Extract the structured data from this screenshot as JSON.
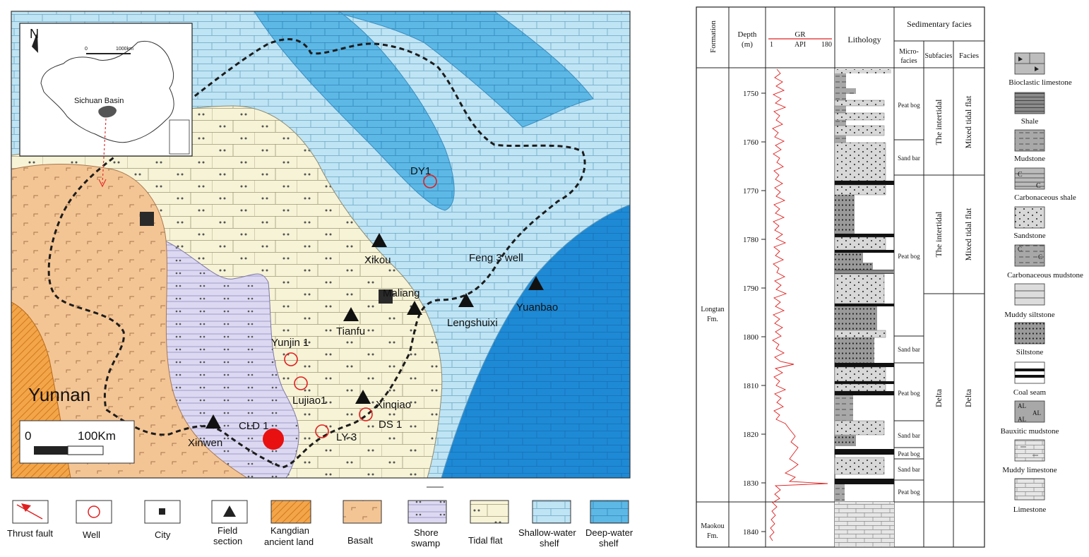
{
  "map": {
    "north": "N",
    "inset_scale": "0    1000km",
    "inset_scale_zero": "0",
    "inset_scale_value": "1000km",
    "inset_basin_label": "Sichuan Basin",
    "province_label": "Yunnan",
    "scale_zero": "0",
    "scale_value": "100Km",
    "wells": [
      {
        "name": "DY1"
      },
      {
        "name": "Yunjin 1"
      },
      {
        "name": "Lujiao1"
      },
      {
        "name": "CLD 1"
      },
      {
        "name": "LY-3"
      },
      {
        "name": "DS 1"
      }
    ],
    "sections": [
      {
        "name": "Xikou"
      },
      {
        "name": "Tianfu"
      },
      {
        "name": "Lengshuixi"
      },
      {
        "name": "Feng 3 well"
      },
      {
        "name": "Yuanbao"
      },
      {
        "name": "Xinqiao"
      },
      {
        "name": "Xinwen"
      }
    ],
    "cities": [
      {
        "name": "Maliang"
      }
    ],
    "colors": {
      "kangdian": "#f3a54a",
      "basalt": "#f4c594",
      "shore_swamp": "#dcd8f2",
      "tidal_flat": "#f7f3d6",
      "shallow_shelf": "#bfe4f4",
      "deep_shelf": "#5db8e6",
      "deep_blue": "#1e8ad6",
      "well": "#e02020"
    }
  },
  "legend": [
    {
      "label": "Thrust fault",
      "icon": "thrust-fault-icon"
    },
    {
      "label": "Well",
      "icon": "well-icon"
    },
    {
      "label": "City",
      "icon": "city-icon"
    },
    {
      "label": "Field\nsection",
      "icon": "field-section-icon"
    },
    {
      "label": "Kangdian\nancient land",
      "icon": "kangdian-swatch"
    },
    {
      "label": "Basalt",
      "icon": "basalt-swatch"
    },
    {
      "label": "Shore\nswamp",
      "icon": "shore-swamp-swatch"
    },
    {
      "label": "Tidal flat",
      "icon": "tidal-flat-swatch"
    },
    {
      "label": "Shallow-water\nshelf",
      "icon": "shallow-shelf-swatch"
    },
    {
      "label": "Deep-water\nshelf",
      "icon": "deep-shelf-swatch"
    }
  ],
  "column": {
    "headers": {
      "formation": "Formation",
      "depth": "Depth\n(m)",
      "gr": "GR",
      "gr_unit": "API",
      "gr_min": "1",
      "gr_max": "180",
      "lithology": "Lithology",
      "sedimentary_facies": "Sedimentary facies",
      "microfacies": "Micro-\nfacies",
      "subfacies": "Subfacies",
      "facies": "Facies"
    },
    "formations": [
      "Longtan\nFm.",
      "Maokou\nFm."
    ],
    "depth_ticks": [
      "1750",
      "1760",
      "1770",
      "1780",
      "1790",
      "1800",
      "1810",
      "1820",
      "1830",
      "1840"
    ],
    "microfacies": [
      "Peat bog",
      "Sand bar",
      "Peat bog",
      "Sand bar",
      "Peat bog",
      "Sand bar",
      "Peat bog",
      "Sand bar",
      "Peat bog"
    ],
    "subfacies": [
      "The intertidal",
      "The intertidal",
      "Delta"
    ],
    "facies": [
      "Mixed tidal flat",
      "Mixed tidal flat",
      "Delta"
    ]
  },
  "lith_legend": [
    "Bioclastic limestone",
    "Shale",
    "Mudstone",
    "Carbonaceous shale",
    "Sandstone",
    "Carbonaceous mudstone",
    "Muddy siltstone",
    "Siltstone",
    "Coal seam",
    "Bauxitic mudstone",
    "Muddy limestone",
    "Limestone"
  ]
}
